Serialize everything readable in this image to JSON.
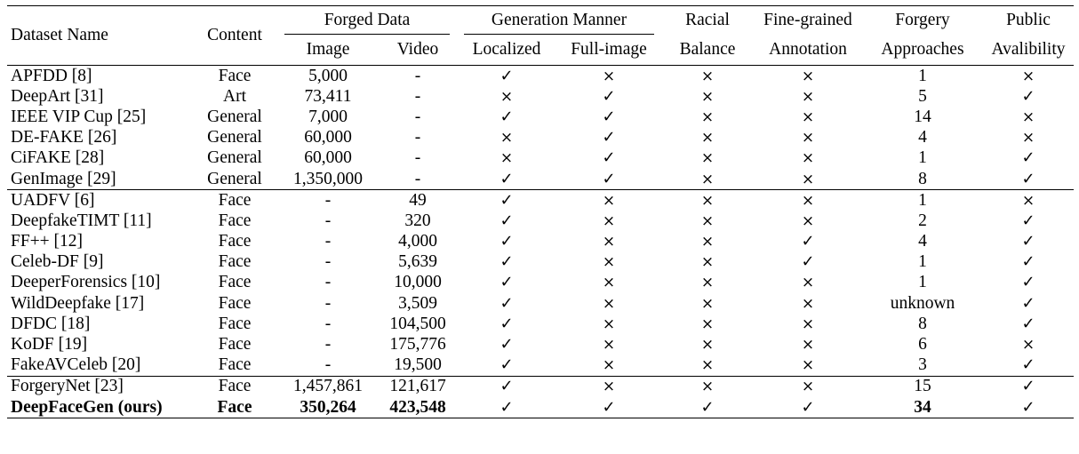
{
  "table": {
    "headers": {
      "dataset_name": "Dataset Name",
      "content": "Content",
      "forged_data": "Forged Data",
      "image": "Image",
      "video": "Video",
      "generation_manner": "Generation Manner",
      "localized": "Localized",
      "full_image": "Full-image",
      "racial_top": "Racial",
      "racial_bottom": "Balance",
      "fine_top": "Fine-grained",
      "fine_bottom": "Annotation",
      "forgery_top": "Forgery",
      "forgery_bottom": "Approaches",
      "public_top": "Public",
      "public_bottom": "Avalibility"
    },
    "symbols": {
      "check": "✓",
      "cross": "×"
    },
    "groups": [
      [
        {
          "name": "APFDD [8]",
          "content": "Face",
          "image": "5,000",
          "video": "-",
          "localized": "check",
          "full_image": "cross",
          "racial": "cross",
          "fine": "cross",
          "approaches": "1",
          "public": "cross",
          "bold": false
        },
        {
          "name": "DeepArt [31]",
          "content": "Art",
          "image": "73,411",
          "video": "-",
          "localized": "cross",
          "full_image": "check",
          "racial": "cross",
          "fine": "cross",
          "approaches": "5",
          "public": "check",
          "bold": false
        },
        {
          "name": "IEEE VIP Cup [25]",
          "content": "General",
          "image": "7,000",
          "video": "-",
          "localized": "check",
          "full_image": "check",
          "racial": "cross",
          "fine": "cross",
          "approaches": "14",
          "public": "cross",
          "bold": false
        },
        {
          "name": "DE-FAKE [26]",
          "content": "General",
          "image": "60,000",
          "video": "-",
          "localized": "cross",
          "full_image": "check",
          "racial": "cross",
          "fine": "cross",
          "approaches": "4",
          "public": "cross",
          "bold": false
        },
        {
          "name": "CiFAKE [28]",
          "content": "General",
          "image": "60,000",
          "video": "-",
          "localized": "cross",
          "full_image": "check",
          "racial": "cross",
          "fine": "cross",
          "approaches": "1",
          "public": "check",
          "bold": false
        },
        {
          "name": "GenImage [29]",
          "content": "General",
          "image": "1,350,000",
          "video": "-",
          "localized": "check",
          "full_image": "check",
          "racial": "cross",
          "fine": "cross",
          "approaches": "8",
          "public": "check",
          "bold": false
        }
      ],
      [
        {
          "name": "UADFV [6]",
          "content": "Face",
          "image": "-",
          "video": "49",
          "localized": "check",
          "full_image": "cross",
          "racial": "cross",
          "fine": "cross",
          "approaches": "1",
          "public": "cross",
          "bold": false
        },
        {
          "name": "DeepfakeTIMT [11]",
          "content": "Face",
          "image": "-",
          "video": "320",
          "localized": "check",
          "full_image": "cross",
          "racial": "cross",
          "fine": "cross",
          "approaches": "2",
          "public": "check",
          "bold": false
        },
        {
          "name": "FF++ [12]",
          "content": "Face",
          "image": "-",
          "video": "4,000",
          "localized": "check",
          "full_image": "cross",
          "racial": "cross",
          "fine": "check",
          "approaches": "4",
          "public": "check",
          "bold": false
        },
        {
          "name": "Celeb-DF [9]",
          "content": "Face",
          "image": "-",
          "video": "5,639",
          "localized": "check",
          "full_image": "cross",
          "racial": "cross",
          "fine": "check",
          "approaches": "1",
          "public": "check",
          "bold": false
        },
        {
          "name": "DeeperForensics [10]",
          "content": "Face",
          "image": "-",
          "video": "10,000",
          "localized": "check",
          "full_image": "cross",
          "racial": "cross",
          "fine": "cross",
          "approaches": "1",
          "public": "check",
          "bold": false
        },
        {
          "name": "WildDeepfake [17]",
          "content": "Face",
          "image": "-",
          "video": "3,509",
          "localized": "check",
          "full_image": "cross",
          "racial": "cross",
          "fine": "cross",
          "approaches": "unknown",
          "public": "check",
          "bold": false
        },
        {
          "name": "DFDC [18]",
          "content": "Face",
          "image": "-",
          "video": "104,500",
          "localized": "check",
          "full_image": "cross",
          "racial": "cross",
          "fine": "cross",
          "approaches": "8",
          "public": "check",
          "bold": false
        },
        {
          "name": "KoDF [19]",
          "content": "Face",
          "image": "-",
          "video": "175,776",
          "localized": "check",
          "full_image": "cross",
          "racial": "cross",
          "fine": "cross",
          "approaches": "6",
          "public": "cross",
          "bold": false
        },
        {
          "name": "FakeAVCeleb [20]",
          "content": "Face",
          "image": "-",
          "video": "19,500",
          "localized": "check",
          "full_image": "cross",
          "racial": "cross",
          "fine": "cross",
          "approaches": "3",
          "public": "check",
          "bold": false
        }
      ],
      [
        {
          "name": "ForgeryNet [23]",
          "content": "Face",
          "image": "1,457,861",
          "video": "121,617",
          "localized": "check",
          "full_image": "cross",
          "racial": "cross",
          "fine": "cross",
          "approaches": "15",
          "public": "check",
          "bold": false
        },
        {
          "name": "DeepFaceGen (ours)",
          "content": "Face",
          "image": "350,264",
          "video": "423,548",
          "localized": "check",
          "full_image": "check",
          "racial": "check",
          "fine": "check",
          "approaches": "34",
          "public": "check",
          "bold": true
        }
      ]
    ]
  }
}
